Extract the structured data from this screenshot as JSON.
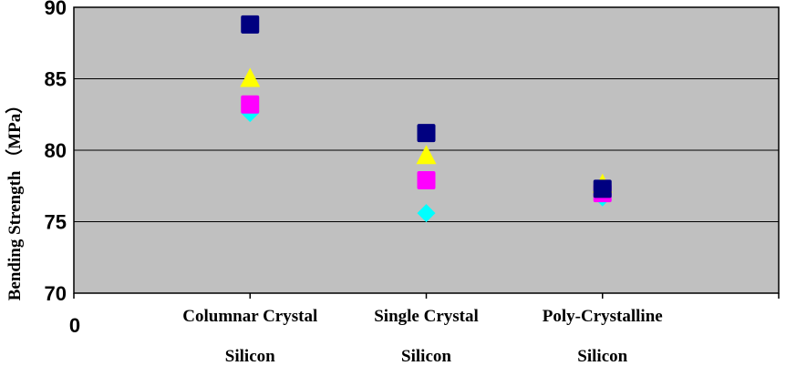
{
  "chart_data": {
    "type": "scatter",
    "title": "",
    "ylabel": "Bending Strength （MPa）",
    "ylim": [
      70,
      90
    ],
    "yticks": [
      70,
      75,
      80,
      85,
      90
    ],
    "x_origin_label": "0",
    "grid": true,
    "legend": "none",
    "background_color": "#c0c0c0",
    "categories": [
      {
        "line1": "Columnar Crystal",
        "line2": "Silicon"
      },
      {
        "line1": "Single Crystal",
        "line2": "Silicon"
      },
      {
        "line1": "Poly-Crystalline",
        "line2": "Silicon"
      }
    ],
    "series": [
      {
        "marker": "square",
        "color": "#000080",
        "values": [
          88.8,
          81.2,
          77.3
        ]
      },
      {
        "marker": "triangle",
        "color": "#ffff00",
        "values": [
          85.0,
          79.6,
          77.6
        ]
      },
      {
        "marker": "square",
        "color": "#ff00ff",
        "values": [
          83.2,
          77.9,
          77.0
        ]
      },
      {
        "marker": "diamond",
        "color": "#00ffff",
        "values": [
          82.6,
          75.6,
          76.7
        ]
      }
    ]
  }
}
